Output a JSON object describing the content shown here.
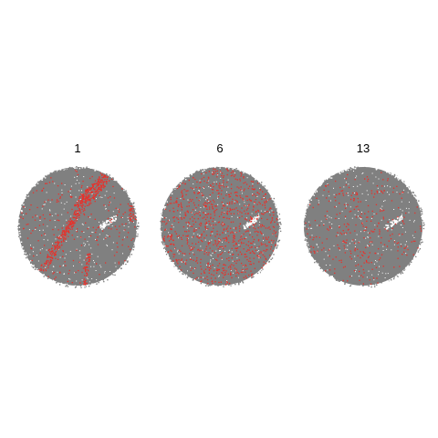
{
  "chart_data": {
    "type": "scatter",
    "description_free": true,
    "colors": {
      "background_points": "#808080",
      "highlight_points": "#e8302a",
      "hole": "#ffffff"
    },
    "panels": [
      {
        "title": "1",
        "pattern": "streak",
        "highlight_density": 0.06
      },
      {
        "title": "6",
        "pattern": "uniform",
        "highlight_density": 0.14
      },
      {
        "title": "13",
        "pattern": "sparse-center",
        "highlight_density": 0.05
      }
    ]
  }
}
